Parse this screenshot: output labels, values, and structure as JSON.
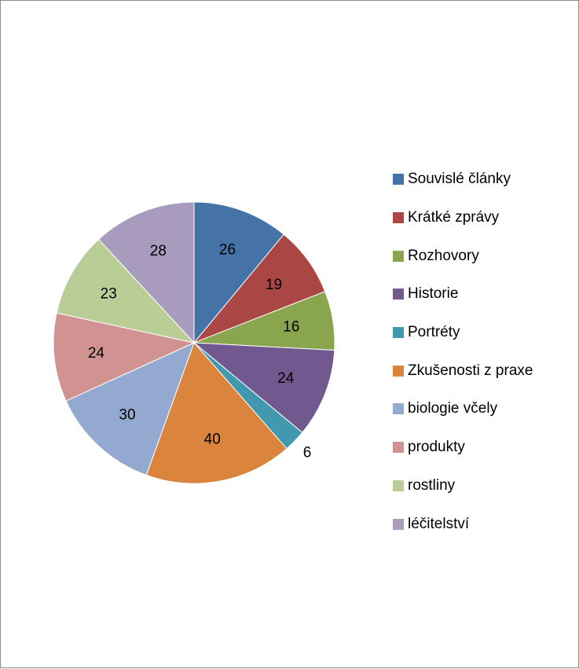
{
  "chart_data": {
    "type": "pie",
    "title": "",
    "legend_position": "right",
    "slices": [
      {
        "label": "Souvislé články",
        "value": 26,
        "color": "#4572a7"
      },
      {
        "label": "Krátké zprávy",
        "value": 19,
        "color": "#aa4643"
      },
      {
        "label": "Rozhovory",
        "value": 16,
        "color": "#89a54e"
      },
      {
        "label": "Historie",
        "value": 24,
        "color": "#71588f"
      },
      {
        "label": "Portréty",
        "value": 6,
        "color": "#4198af"
      },
      {
        "label": "Zkušenosti z praxe",
        "value": 40,
        "color": "#db843d"
      },
      {
        "label": "biologie včely",
        "value": 30,
        "color": "#93a9cf"
      },
      {
        "label": "produkty",
        "value": 24,
        "color": "#d19392"
      },
      {
        "label": "rostliny",
        "value": 23,
        "color": "#b9cd96"
      },
      {
        "label": "léčitelství",
        "value": 28,
        "color": "#a99bbd"
      }
    ]
  }
}
